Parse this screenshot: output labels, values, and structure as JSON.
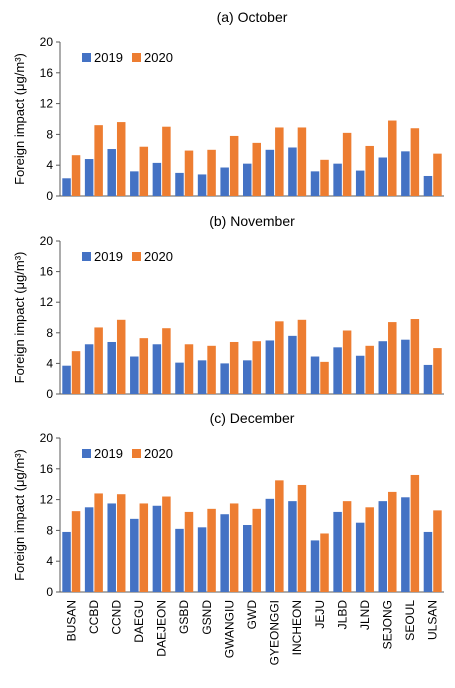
{
  "figure": {
    "categories": [
      "BUSAN",
      "CCBD",
      "CCND",
      "DAEGU",
      "DAEJEON",
      "GSBD",
      "GSND",
      "GWANGIU",
      "GWD",
      "GYEONGGI",
      "INCHEON",
      "JEJU",
      "JLBD",
      "JLND",
      "SEJONG",
      "SEOUL",
      "ULSAN"
    ],
    "ylabel": "Foreign impact (μg/m³)",
    "ylim": [
      0,
      20
    ],
    "yticks": [
      0,
      4,
      8,
      12,
      16,
      20
    ],
    "legend": [
      "2019",
      "2020"
    ],
    "colors": {
      "2019": "#4472C4",
      "2020": "#ED7D31"
    }
  },
  "chart_data": [
    {
      "type": "bar",
      "title": "(a) October",
      "xlabel": "",
      "ylabel": "Foreign impact (μg/m³)",
      "ylim": [
        0,
        20
      ],
      "legend_position": "top-left",
      "categories": [
        "BUSAN",
        "CCBD",
        "CCND",
        "DAEGU",
        "DAEJEON",
        "GSBD",
        "GSND",
        "GWANGIU",
        "GWD",
        "GYEONGGI",
        "INCHEON",
        "JEJU",
        "JLBD",
        "JLND",
        "SEJONG",
        "SEOUL",
        "ULSAN"
      ],
      "series": [
        {
          "name": "2019",
          "values": [
            2.3,
            4.8,
            6.1,
            3.2,
            4.3,
            3.0,
            2.8,
            3.7,
            4.2,
            6.0,
            6.3,
            3.2,
            4.2,
            3.3,
            5.0,
            5.8,
            2.6
          ]
        },
        {
          "name": "2020",
          "values": [
            5.3,
            9.2,
            9.6,
            6.4,
            9.0,
            5.9,
            6.0,
            7.8,
            6.9,
            8.9,
            8.9,
            4.7,
            8.2,
            6.5,
            9.8,
            8.8,
            5.5
          ]
        }
      ]
    },
    {
      "type": "bar",
      "title": "(b) November",
      "xlabel": "",
      "ylabel": "Foreign impact (μg/m³)",
      "ylim": [
        0,
        20
      ],
      "legend_position": "top-left",
      "categories": [
        "BUSAN",
        "CCBD",
        "CCND",
        "DAEGU",
        "DAEJEON",
        "GSBD",
        "GSND",
        "GWANGIU",
        "GWD",
        "GYEONGGI",
        "INCHEON",
        "JEJU",
        "JLBD",
        "JLND",
        "SEJONG",
        "SEOUL",
        "ULSAN"
      ],
      "series": [
        {
          "name": "2019",
          "values": [
            3.7,
            6.5,
            6.8,
            4.9,
            6.5,
            4.1,
            4.4,
            4.0,
            4.4,
            7.0,
            7.6,
            4.9,
            6.1,
            5.0,
            6.9,
            7.1,
            3.8
          ]
        },
        {
          "name": "2020",
          "values": [
            5.6,
            8.7,
            9.7,
            7.3,
            8.6,
            6.5,
            6.3,
            6.8,
            6.9,
            9.5,
            9.7,
            4.2,
            8.3,
            6.3,
            9.4,
            9.8,
            6.0
          ]
        }
      ]
    },
    {
      "type": "bar",
      "title": "(c) December",
      "xlabel": "",
      "ylabel": "Foreign impact (μg/m³)",
      "ylim": [
        0,
        20
      ],
      "legend_position": "top-left",
      "categories": [
        "BUSAN",
        "CCBD",
        "CCND",
        "DAEGU",
        "DAEJEON",
        "GSBD",
        "GSND",
        "GWANGIU",
        "GWD",
        "GYEONGGI",
        "INCHEON",
        "JEJU",
        "JLBD",
        "JLND",
        "SEJONG",
        "SEOUL",
        "ULSAN"
      ],
      "series": [
        {
          "name": "2019",
          "values": [
            7.8,
            11.0,
            11.5,
            9.5,
            11.2,
            8.2,
            8.4,
            10.1,
            8.7,
            12.1,
            11.8,
            6.7,
            10.4,
            9.0,
            11.8,
            12.3,
            7.8
          ]
        },
        {
          "name": "2020",
          "values": [
            10.5,
            12.8,
            12.7,
            11.5,
            12.4,
            10.4,
            10.8,
            11.5,
            10.8,
            14.5,
            13.9,
            7.6,
            11.8,
            11.0,
            13.0,
            15.2,
            10.6
          ]
        }
      ]
    }
  ]
}
